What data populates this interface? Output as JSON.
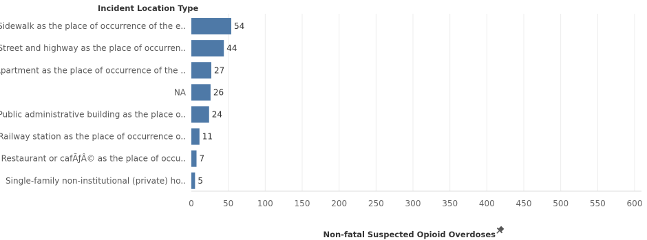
{
  "chart_data": {
    "type": "bar",
    "orientation": "horizontal",
    "row_header": "Incident Location Type",
    "xlabel": "Non-fatal Suspected Opioid Overdoses",
    "pin_icon": "pin-icon",
    "bar_color": "#4e79a7",
    "categories": [
      "Sidewalk as the place of occurrence of the e..",
      "Street and highway as the place of occurren..",
      "Apartment as the place of occurrence of the ..",
      "NA",
      "Public administrative building as the place o..",
      "Railway station as the place of occurrence o..",
      "Restaurant or cafÃƒÂ© as the place of occu..",
      "Single-family non-institutional (private) ho.."
    ],
    "values": [
      54,
      44,
      27,
      26,
      24,
      11,
      7,
      5
    ],
    "xlim": [
      0,
      600
    ],
    "xticks": [
      0,
      50,
      100,
      150,
      200,
      250,
      300,
      350,
      400,
      450,
      500,
      550,
      600
    ],
    "grid": true
  }
}
